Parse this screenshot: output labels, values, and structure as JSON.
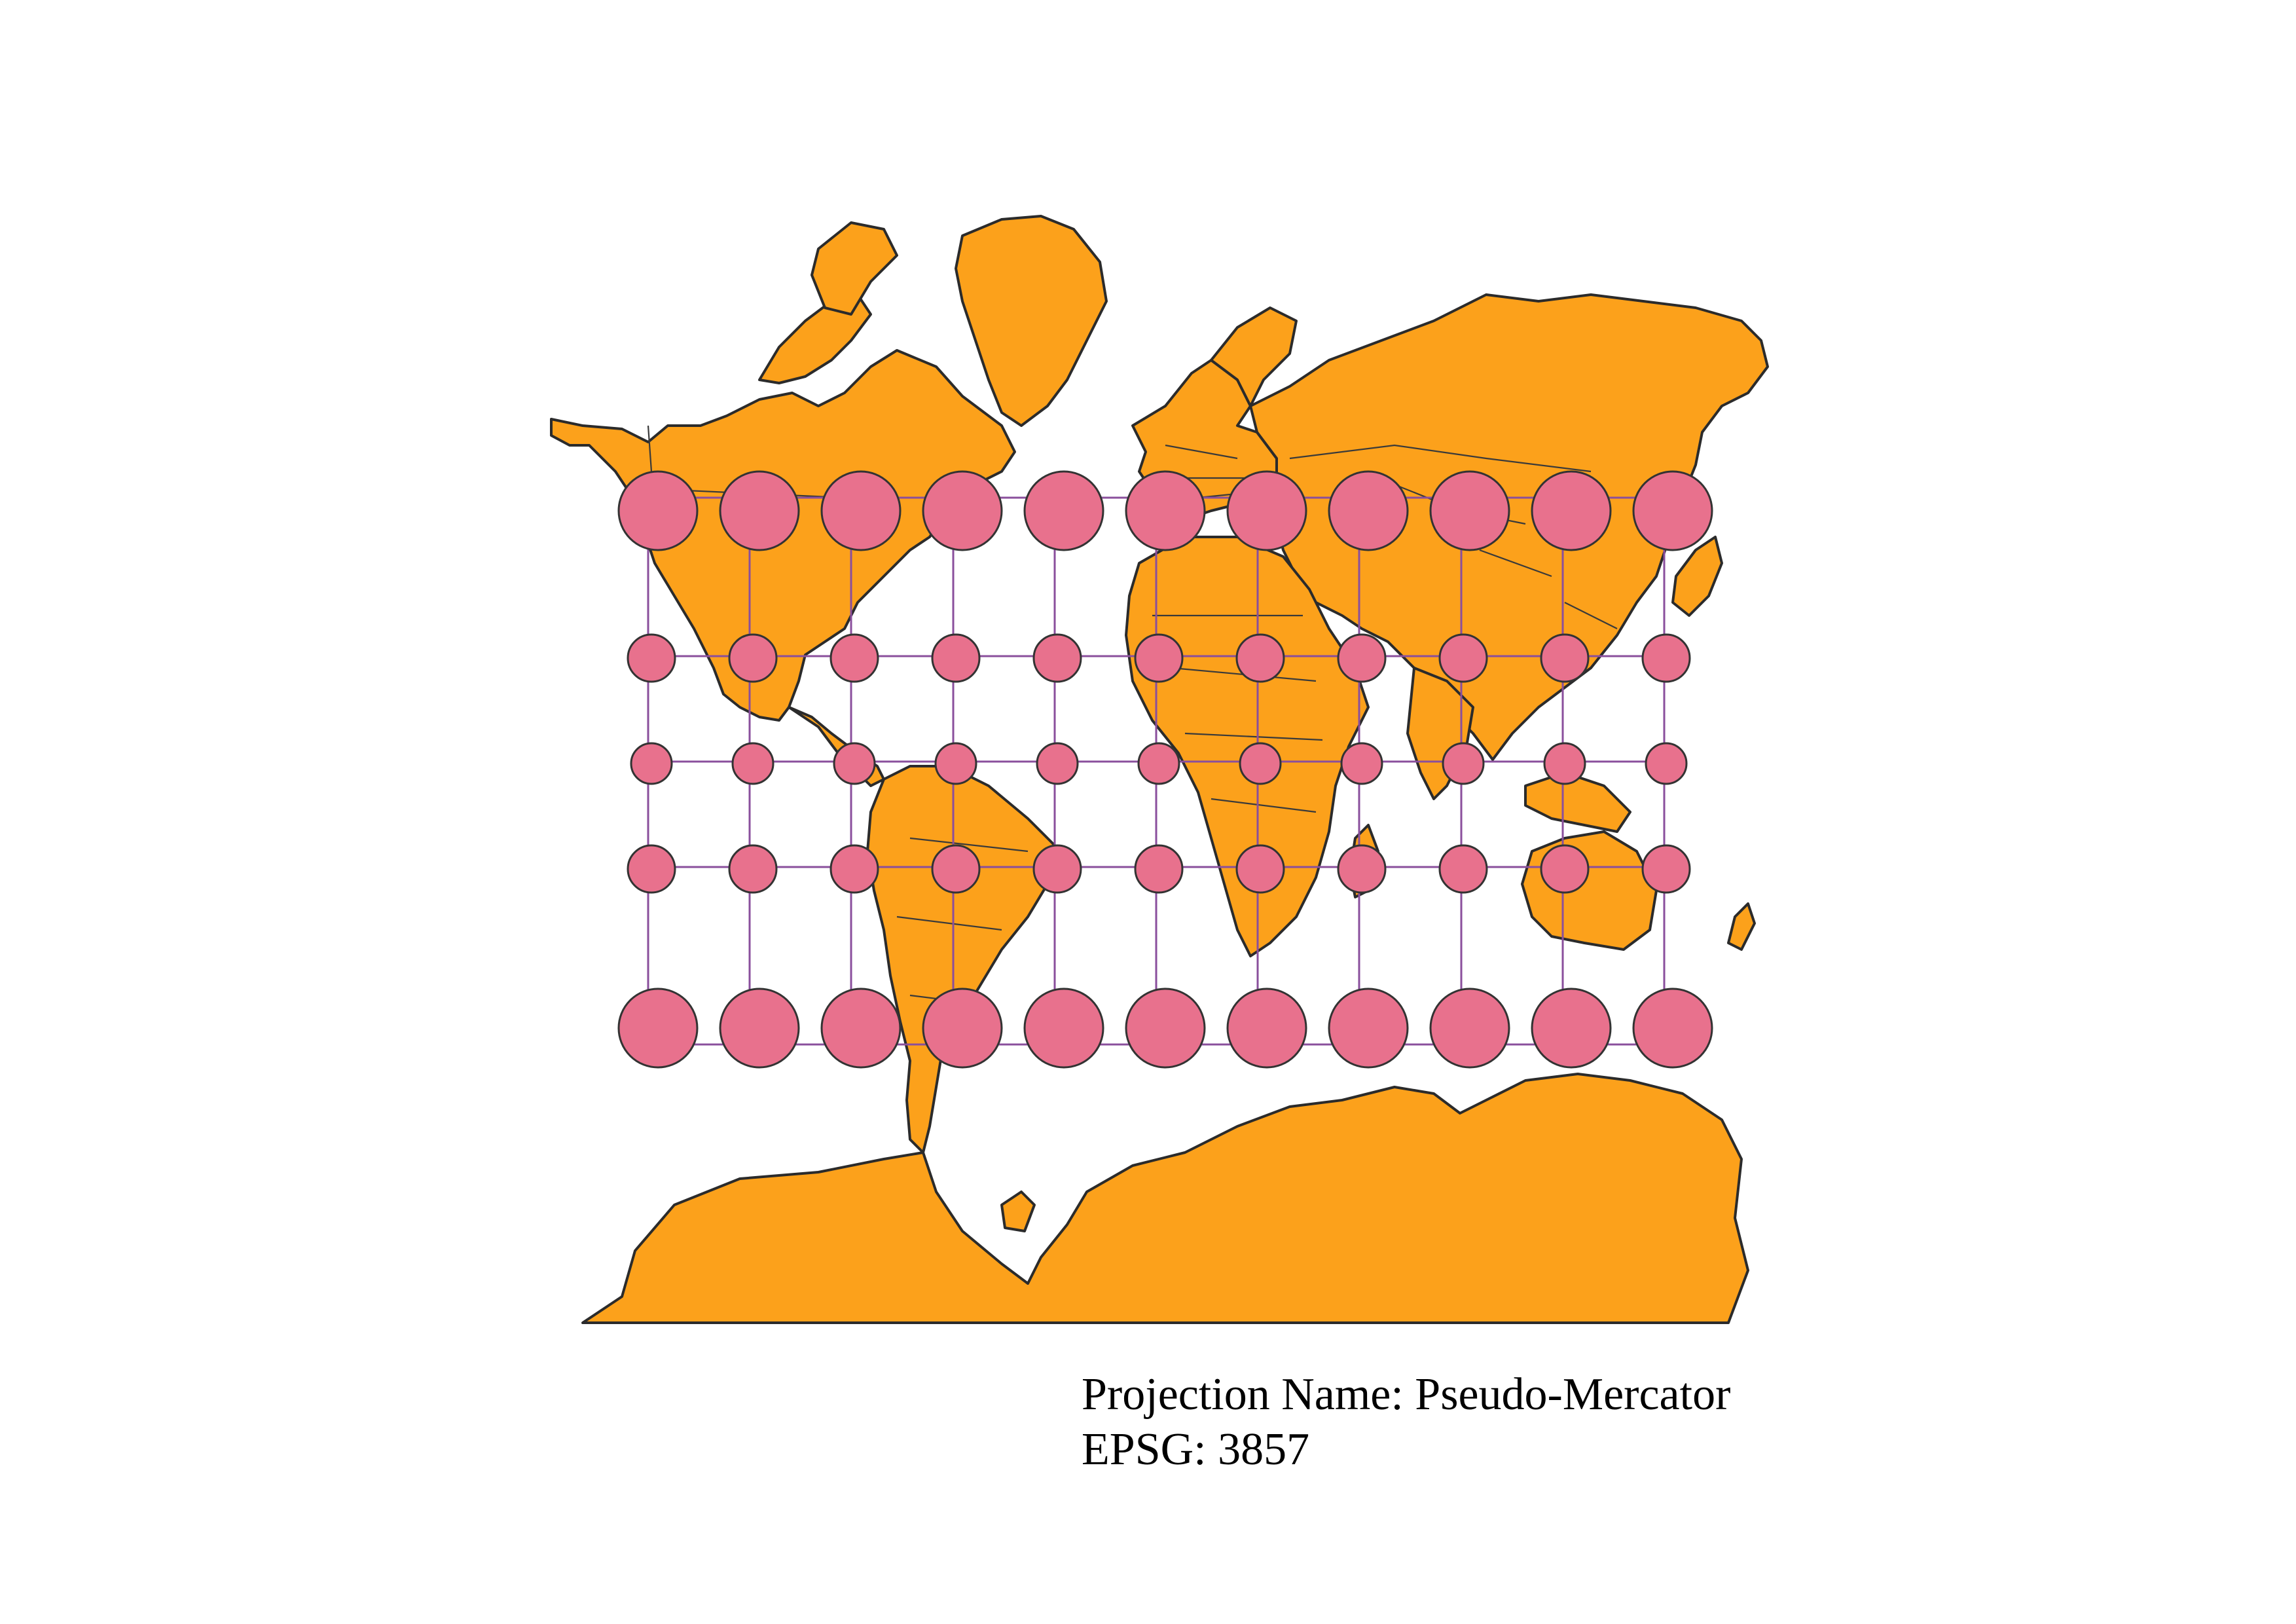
{
  "map": {
    "projection_name_label": "Projection Name: Pseudo-Mercator",
    "epsg_label": "EPSG: 3857",
    "colors": {
      "land": "#fca11b",
      "land_outline": "#2b2b2b",
      "tissot_indicatrix": "#e8718d",
      "graticule": "#8a4f9c",
      "background": "#ffffff"
    },
    "indicatrix_rows": [
      {
        "size": "large",
        "count": 11
      },
      {
        "size": "small",
        "count": 11
      },
      {
        "size": "small",
        "count": 11
      },
      {
        "size": "small",
        "count": 11
      },
      {
        "size": "large",
        "count": 11
      }
    ]
  }
}
